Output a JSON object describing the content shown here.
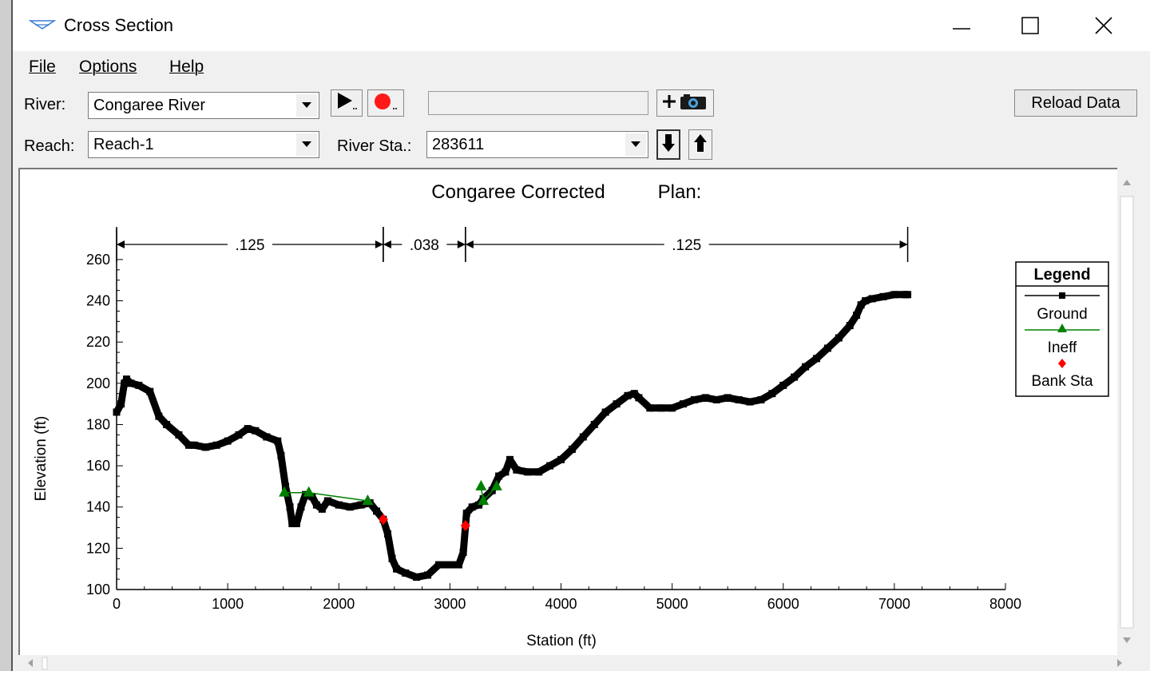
{
  "window": {
    "title": "Cross Section",
    "controls": {
      "minimize": "—",
      "maximize": "☐",
      "close": "✕"
    }
  },
  "menu": {
    "file": "File",
    "options": "Options",
    "help": "Help"
  },
  "toolbar": {
    "river_label": "River:",
    "river_value": "Congaree River",
    "reach_label": "Reach:",
    "reach_value": "Reach-1",
    "river_sta_label": "River Sta.:",
    "river_sta_value": "283611",
    "reload_label": "Reload Data",
    "icons": [
      "play-icon",
      "record-icon",
      "plus-camera-icon",
      "step-down-icon",
      "step-up-icon"
    ]
  },
  "plot": {
    "title": "Congaree Corrected",
    "plan_label": "Plan:",
    "mannings": [
      {
        "value": ".125",
        "x_from": 0,
        "x_to": 2400
      },
      {
        "value": ".038",
        "x_from": 2400,
        "x_to": 3140
      },
      {
        "value": ".125",
        "x_from": 3140,
        "x_to": 7120
      }
    ],
    "legend": {
      "title": "Legend",
      "items": [
        {
          "name": "Ground",
          "color": "#000000",
          "marker": "square"
        },
        {
          "name": "Ineff",
          "color": "#008000",
          "marker": "triangle"
        },
        {
          "name": "Bank Sta",
          "color": "#ff0000",
          "marker": "diamond"
        }
      ]
    }
  },
  "chart_data": {
    "type": "line",
    "xlabel": "Station (ft)",
    "ylabel": "Elevation (ft)",
    "xlim": [
      0,
      8000
    ],
    "ylim": [
      100,
      265
    ],
    "x_ticks": [
      0,
      1000,
      2000,
      3000,
      4000,
      5000,
      6000,
      7000,
      8000
    ],
    "y_ticks": [
      100,
      120,
      140,
      160,
      180,
      200,
      220,
      240,
      260
    ],
    "grid": false,
    "legend_position": "right",
    "series": [
      {
        "name": "Ground",
        "color": "#000000",
        "x": [
          0,
          40,
          70,
          90,
          130,
          200,
          300,
          380,
          450,
          560,
          650,
          700,
          800,
          900,
          1000,
          1100,
          1180,
          1250,
          1350,
          1450,
          1480,
          1520,
          1560,
          1580,
          1620,
          1660,
          1700,
          1760,
          1800,
          1850,
          1900,
          2000,
          2100,
          2200,
          2280,
          2340,
          2400,
          2440,
          2480,
          2520,
          2600,
          2700,
          2800,
          2900,
          3000,
          3080,
          3120,
          3150,
          3200,
          3260,
          3300,
          3380,
          3440,
          3500,
          3540,
          3600,
          3700,
          3800,
          3900,
          4000,
          4100,
          4200,
          4300,
          4400,
          4500,
          4600,
          4660,
          4700,
          4800,
          4900,
          5000,
          5100,
          5200,
          5300,
          5400,
          5500,
          5600,
          5700,
          5800,
          5900,
          6000,
          6100,
          6200,
          6300,
          6400,
          6500,
          6600,
          6660,
          6700,
          6740,
          6800,
          6900,
          7000,
          7100,
          7120
        ],
        "y": [
          186,
          190,
          200,
          202,
          200,
          199,
          196,
          184,
          180,
          175,
          170,
          170,
          169,
          170,
          172,
          175,
          178,
          177,
          174,
          172,
          165,
          150,
          140,
          132,
          132,
          140,
          146,
          145,
          141,
          139,
          143,
          141,
          140,
          141,
          142,
          138,
          134,
          127,
          115,
          110,
          108,
          106,
          107,
          112,
          112,
          112,
          118,
          137,
          140,
          141,
          144,
          148,
          155,
          157,
          163,
          158,
          157,
          157,
          160,
          163,
          168,
          174,
          180,
          186,
          190,
          194,
          195,
          193,
          188,
          188,
          188,
          190,
          192,
          193,
          192,
          193,
          192,
          191,
          192,
          195,
          199,
          203,
          208,
          212,
          217,
          222,
          228,
          233,
          238,
          240,
          241,
          242,
          243,
          243,
          243
        ]
      },
      {
        "name": "Ineff",
        "color": "#008000",
        "segments": [
          {
            "x": [
              1510,
              1730,
              2260
            ],
            "y": [
              147,
              147,
              143
            ]
          },
          {
            "x": [
              3280,
              3300,
              3420
            ],
            "y": [
              150,
              143,
              150
            ]
          }
        ]
      },
      {
        "name": "Bank Sta",
        "color": "#ff0000",
        "x": [
          2400,
          3140
        ],
        "y": [
          134,
          131
        ]
      }
    ]
  }
}
